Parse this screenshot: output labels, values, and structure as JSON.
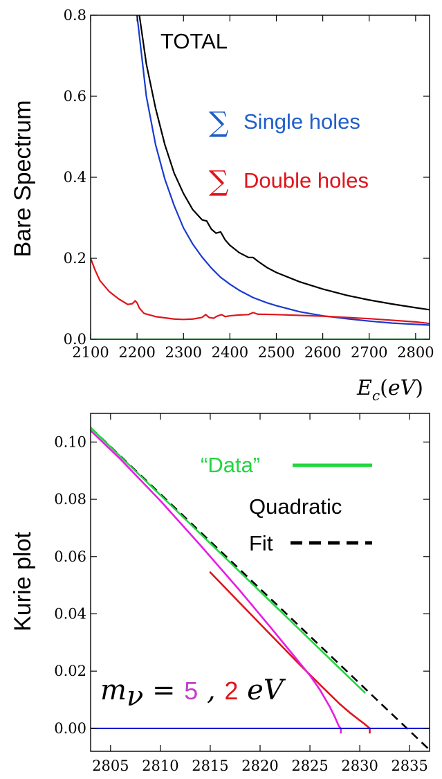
{
  "colors": {
    "total": "#000000",
    "single": "#1a3ad0",
    "double": "#e0141b",
    "green": "#22d640",
    "magenta": "#e61ce6",
    "blue_line": "#1010d0",
    "single_text": "#1f5ec8",
    "double_text": "#e0141b",
    "data_text": "#22d640",
    "mass5_text": "#c040c8",
    "mass2_text": "#e0141b"
  },
  "chart_data": [
    {
      "type": "line",
      "ylabel": "Bare Spectrum",
      "xlabel": "E_c(eV)",
      "xlabel_display": "Ec(eV)",
      "xlim": [
        2100,
        2830
      ],
      "ylim": [
        0,
        0.8
      ],
      "xticks": [
        "2100",
        "2200",
        "2300",
        "2400",
        "2500",
        "2600",
        "2700",
        "2800"
      ],
      "xtick_values": [
        2100,
        2200,
        2300,
        2400,
        2500,
        2600,
        2700,
        2800
      ],
      "yticks": [
        "0.0",
        "0.2",
        "0.4",
        "0.6",
        "0.8"
      ],
      "ytick_values": [
        0.0,
        0.2,
        0.4,
        0.6,
        0.8
      ],
      "annotations": {
        "total": "TOTAL",
        "sigma": "∑",
        "single": "Single holes",
        "double": "Double holes"
      },
      "series": [
        {
          "key": "total",
          "color": "#000000",
          "x": [
            2205,
            2220,
            2240,
            2260,
            2280,
            2300,
            2320,
            2340,
            2350,
            2360,
            2370,
            2380,
            2390,
            2400,
            2420,
            2440,
            2450,
            2460,
            2480,
            2500,
            2550,
            2600,
            2650,
            2700,
            2750,
            2800,
            2830
          ],
          "y": [
            0.8,
            0.68,
            0.57,
            0.48,
            0.41,
            0.36,
            0.32,
            0.295,
            0.292,
            0.272,
            0.262,
            0.265,
            0.245,
            0.232,
            0.214,
            0.202,
            0.202,
            0.193,
            0.177,
            0.165,
            0.142,
            0.124,
            0.109,
            0.097,
            0.087,
            0.078,
            0.073
          ]
        },
        {
          "key": "single",
          "color": "#1a3ad0",
          "x": [
            2200,
            2220,
            2240,
            2260,
            2280,
            2300,
            2320,
            2340,
            2360,
            2380,
            2400,
            2420,
            2450,
            2480,
            2500,
            2550,
            2600,
            2650,
            2700,
            2750,
            2800,
            2830
          ],
          "y": [
            0.8,
            0.6,
            0.48,
            0.395,
            0.33,
            0.275,
            0.235,
            0.203,
            0.176,
            0.153,
            0.136,
            0.121,
            0.103,
            0.09,
            0.083,
            0.068,
            0.058,
            0.051,
            0.045,
            0.04,
            0.037,
            0.035
          ]
        },
        {
          "key": "double",
          "color": "#e0141b",
          "x": [
            2100,
            2110,
            2120,
            2140,
            2160,
            2180,
            2190,
            2196,
            2200,
            2205,
            2215,
            2240,
            2280,
            2300,
            2320,
            2340,
            2348,
            2355,
            2365,
            2372,
            2382,
            2390,
            2400,
            2420,
            2440,
            2450,
            2460,
            2500,
            2600,
            2700,
            2800,
            2830
          ],
          "y": [
            0.2,
            0.17,
            0.145,
            0.118,
            0.1,
            0.086,
            0.088,
            0.095,
            0.09,
            0.077,
            0.064,
            0.056,
            0.05,
            0.049,
            0.05,
            0.054,
            0.061,
            0.054,
            0.052,
            0.057,
            0.061,
            0.056,
            0.058,
            0.06,
            0.061,
            0.066,
            0.062,
            0.061,
            0.057,
            0.051,
            0.043,
            0.039
          ]
        },
        {
          "key": "green",
          "color": "#22d640",
          "x": [
            2100,
            2830
          ],
          "y": [
            0.0,
            0.0
          ]
        }
      ]
    },
    {
      "type": "line",
      "ylabel": "Kurie plot",
      "xlim": [
        2803,
        2837
      ],
      "ylim": [
        -0.008,
        0.11
      ],
      "xticks": [
        "2805",
        "2810",
        "2815",
        "2820",
        "2825",
        "2830",
        "2835"
      ],
      "xtick_values": [
        2805,
        2810,
        2815,
        2820,
        2825,
        2830,
        2835
      ],
      "yticks": [
        "0.00",
        "0.02",
        "0.04",
        "0.06",
        "0.08",
        "0.10"
      ],
      "ytick_values": [
        0.0,
        0.02,
        0.04,
        0.06,
        0.08,
        0.1
      ],
      "legend": {
        "data": "“Data”",
        "quadratic": "Quadratic",
        "fit": "Fit"
      },
      "mass_label": {
        "prefix": "m",
        "sub": "ν",
        "eq": " = ",
        "v1": "5",
        "sep": " , ",
        "v2": "2",
        "unit": " eV"
      },
      "series": [
        {
          "key": "quadratic_fit",
          "color": "#000000",
          "dashed": true,
          "x": [
            2803,
            2837
          ],
          "y": [
            0.105,
            -0.0075
          ]
        },
        {
          "key": "data",
          "color": "#22d640",
          "x": [
            2803,
            2830.5
          ],
          "y": [
            0.105,
            0.0125
          ]
        },
        {
          "key": "m2",
          "color": "#e0141b",
          "x": [
            2815,
            2820,
            2824,
            2826,
            2828,
            2829,
            2830,
            2830.5,
            2830.8,
            2831.0,
            2831.0
          ],
          "y": [
            0.0545,
            0.0365,
            0.0222,
            0.0153,
            0.0085,
            0.0055,
            0.0028,
            0.0015,
            0.0006,
            0.0,
            -0.0015
          ],
          "note": ""
        },
        {
          "key": "m5",
          "color": "#e61ce6",
          "x": [
            2803,
            2806,
            2810,
            2814,
            2818,
            2821,
            2823,
            2825,
            2826,
            2827,
            2827.5,
            2827.9,
            2828.1,
            2828.1
          ],
          "y": [
            0.104,
            0.094,
            0.0795,
            0.064,
            0.048,
            0.0355,
            0.027,
            0.0185,
            0.0135,
            0.0075,
            0.004,
            0.0008,
            0.0,
            -0.0015
          ]
        },
        {
          "key": "zero",
          "color": "#1010d0",
          "x": [
            2803,
            2837
          ],
          "y": [
            0.0,
            0.0
          ]
        }
      ]
    }
  ]
}
